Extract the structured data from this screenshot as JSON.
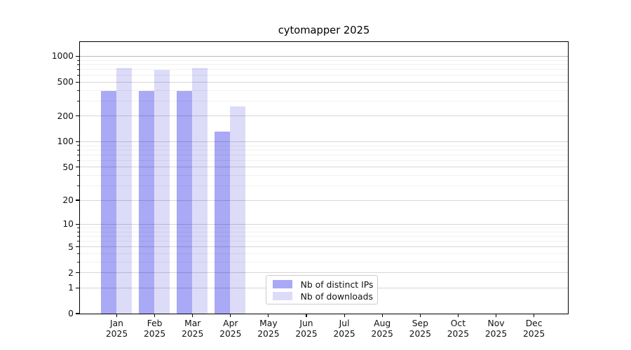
{
  "chart_data": {
    "type": "bar",
    "title": "cytomapper 2025",
    "y_scale": "log-like (log10(1+v)), zero at baseline",
    "grid": "horizontal, major and minor gridlines",
    "legend_position": "inside axes, lower center-left",
    "months": [
      "Jan",
      "Feb",
      "Mar",
      "Apr",
      "May",
      "Jun",
      "Jul",
      "Aug",
      "Sep",
      "Oct",
      "Nov",
      "Dec"
    ],
    "year": "2025",
    "categories": [
      "Jan 2025",
      "Feb 2025",
      "Mar 2025",
      "Apr 2025",
      "May 2025",
      "Jun 2025",
      "Jul 2025",
      "Aug 2025",
      "Sep 2025",
      "Oct 2025",
      "Nov 2025",
      "Dec 2025"
    ],
    "series": [
      {
        "name": "Nb of distinct IPs",
        "color": "#a9a9f5",
        "values": [
          390,
          390,
          390,
          130,
          null,
          null,
          null,
          null,
          null,
          null,
          null,
          null
        ]
      },
      {
        "name": "Nb of downloads",
        "color": "#dcdcf9",
        "values": [
          720,
          690,
          720,
          258,
          null,
          null,
          null,
          null,
          null,
          null,
          null,
          null
        ]
      }
    ],
    "y_ticks": [
      1000,
      500,
      200,
      100,
      50,
      20,
      10,
      5,
      2,
      1,
      0
    ],
    "y_minor_gridlines": [
      3,
      4,
      6,
      7,
      8,
      9,
      30,
      40,
      60,
      70,
      80,
      90,
      300,
      400,
      600,
      700,
      800,
      900
    ],
    "ylim": [
      0,
      1450
    ],
    "axis_color": "#000000",
    "major_grid_color": "#cccccc",
    "minor_grid_color": "#efefef"
  }
}
